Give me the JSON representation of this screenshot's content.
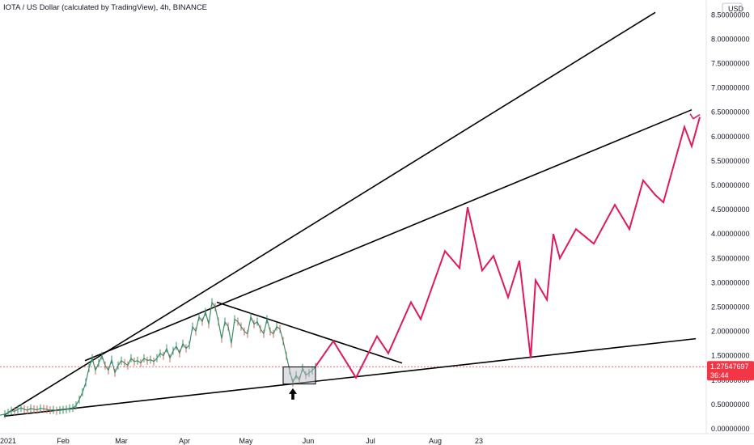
{
  "header": {
    "title": "IOTA / US Dollar (calculated by TradingView), 4h, BINANCE"
  },
  "chart_data": {
    "type": "line",
    "currency_label": "USD",
    "x_tick_labels": [
      "2021",
      "Feb",
      "Mar",
      "Apr",
      "May",
      "Jun",
      "Jul",
      "Aug",
      "23"
    ],
    "y_tick_labels": [
      "0.00000000",
      "0.50000000",
      "1.00000000",
      "1.50000000",
      "2.00000000",
      "2.50000000",
      "3.00000000",
      "3.50000000",
      "4.00000000",
      "4.50000000",
      "5.00000000",
      "5.50000000",
      "6.00000000",
      "6.50000000",
      "7.00000000",
      "7.50000000",
      "8.00000000",
      "8.50000000"
    ],
    "y_ticks": [
      0,
      0.5,
      1,
      1.5,
      2,
      2.5,
      3,
      3.5,
      4,
      4.5,
      5,
      5.5,
      6,
      6.5,
      7,
      7.5,
      8,
      8.5
    ],
    "last_price": "1.27547697",
    "countdown": "36:44",
    "price_series": {
      "x": [
        0,
        6,
        10,
        14,
        18,
        22,
        26,
        30,
        34,
        38,
        42,
        46,
        50,
        54,
        58,
        62,
        66,
        70,
        74,
        78,
        82,
        86,
        90,
        94,
        98,
        102,
        106,
        110,
        114,
        118,
        122,
        126,
        130,
        134,
        138,
        142,
        146,
        150,
        154,
        158,
        162,
        166,
        170,
        174,
        178,
        182,
        186,
        190,
        194,
        198,
        202,
        206,
        210,
        214,
        218,
        222,
        226,
        230,
        234,
        238,
        242,
        246,
        250,
        254,
        258,
        262,
        266,
        270,
        274,
        278,
        282,
        286,
        290,
        294,
        298,
        302,
        306,
        310,
        314,
        318,
        322,
        326,
        330,
        334,
        338,
        342,
        346,
        350,
        354,
        358,
        362,
        366,
        370,
        374,
        378,
        382,
        386,
        390
      ],
      "y": [
        0.28,
        0.3,
        0.33,
        0.37,
        0.36,
        0.4,
        0.43,
        0.4,
        0.38,
        0.42,
        0.4,
        0.39,
        0.42,
        0.41,
        0.4,
        0.38,
        0.39,
        0.37,
        0.38,
        0.39,
        0.4,
        0.42,
        0.43,
        0.48,
        0.6,
        0.75,
        0.95,
        1.25,
        1.45,
        1.2,
        1.35,
        1.5,
        1.3,
        1.2,
        1.42,
        1.15,
        1.3,
        1.4,
        1.35,
        1.3,
        1.45,
        1.38,
        1.4,
        1.35,
        1.45,
        1.4,
        1.42,
        1.38,
        1.45,
        1.55,
        1.5,
        1.65,
        1.45,
        1.6,
        1.7,
        1.55,
        1.75,
        1.65,
        1.72,
        2.1,
        2.0,
        2.3,
        2.2,
        2.4,
        2.15,
        2.6,
        2.5,
        2.2,
        1.85,
        2.2,
        2.1,
        1.75,
        2.25,
        2.2,
        2.1,
        2.0,
        1.95,
        2.3,
        2.15,
        2.2,
        2.05,
        1.95,
        2.25,
        2.0,
        1.95,
        2.1,
        2.05,
        1.8,
        1.5,
        1.2,
        0.95,
        1.1,
        1.0,
        1.25,
        1.1,
        1.15,
        1.2,
        1.27
      ]
    },
    "projection_path": {
      "x": [
        390,
        412,
        440,
        466,
        480,
        508,
        520,
        550,
        568,
        578,
        596,
        610,
        628,
        642,
        656,
        662,
        676,
        684,
        692,
        712,
        734,
        760,
        778,
        795,
        810,
        820,
        846,
        855,
        865
      ],
      "y": [
        1.28,
        1.8,
        1.05,
        1.9,
        1.55,
        2.6,
        2.25,
        3.65,
        3.3,
        4.55,
        3.25,
        3.55,
        2.7,
        3.45,
        1.45,
        3.05,
        2.65,
        4.0,
        3.5,
        4.1,
        3.8,
        4.6,
        4.1,
        5.1,
        4.8,
        4.65,
        6.2,
        5.8,
        6.4
      ]
    },
    "trendlines": [
      {
        "x1": 5,
        "y1": 0.28,
        "x2": 810,
        "y2": 8.55
      },
      {
        "x1": 105,
        "y1": 1.4,
        "x2": 855,
        "y2": 6.55
      },
      {
        "x1": 5,
        "y1": 0.26,
        "x2": 860,
        "y2": 1.85
      },
      {
        "x1": 268,
        "y1": 2.6,
        "x2": 497,
        "y2": 1.35
      }
    ],
    "highlight_box": {
      "x1": 350,
      "x2": 390,
      "y1": 0.92,
      "y2": 1.27
    },
    "arrow": {
      "x": 362,
      "y": 0.7
    },
    "colors": {
      "price": "#3c8f6a",
      "price_down": "#e05a4e",
      "projection": "#e0195c",
      "trendline": "#000000",
      "box": "#b5b9c4"
    }
  }
}
